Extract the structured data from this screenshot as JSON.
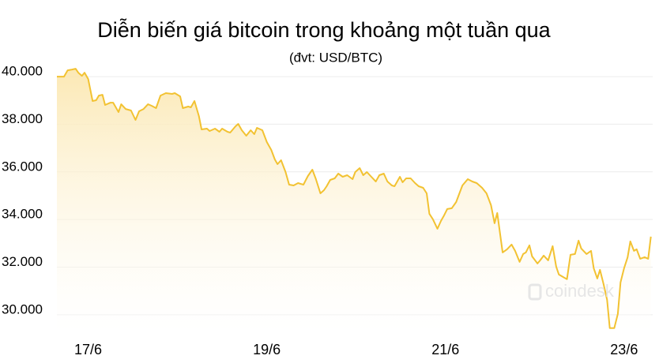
{
  "chart_data": {
    "type": "line",
    "title": "Diễn biến giá bitcoin trong khoảng một tuần qua",
    "subtitle": "(đvt: USD/BTC)",
    "watermark": "coindesk",
    "color": "#f2c232",
    "area": true,
    "grid": true,
    "xlim": [
      16.65,
      23.32
    ],
    "xticks": [
      {
        "value": 17,
        "label": "17/6"
      },
      {
        "value": 19,
        "label": "19/6"
      },
      {
        "value": 21,
        "label": "21/6"
      },
      {
        "value": 23,
        "label": "23/6"
      }
    ],
    "ylim": [
      29300,
      40400
    ],
    "yticks": [
      {
        "value": 30000,
        "label": "30.000"
      },
      {
        "value": 32000,
        "label": "32.000"
      },
      {
        "value": 34000,
        "label": "34.000"
      },
      {
        "value": 36000,
        "label": "36.000"
      },
      {
        "value": 38000,
        "label": "38.000"
      },
      {
        "value": 40000,
        "label": "40.000"
      }
    ],
    "x": [
      16.65,
      16.73,
      16.77,
      16.82,
      16.86,
      16.89,
      16.93,
      16.96,
      17.0,
      17.05,
      17.09,
      17.12,
      17.16,
      17.19,
      17.25,
      17.28,
      17.34,
      17.37,
      17.42,
      17.48,
      17.53,
      17.57,
      17.62,
      17.67,
      17.71,
      17.76,
      17.81,
      17.87,
      17.94,
      17.97,
      18.03,
      18.06,
      18.12,
      18.15,
      18.19,
      18.24,
      18.27,
      18.33,
      18.36,
      18.42,
      18.47,
      18.5,
      18.56,
      18.59,
      18.65,
      18.68,
      18.72,
      18.77,
      18.82,
      18.86,
      18.89,
      18.95,
      19.0,
      19.05,
      19.09,
      19.12,
      19.16,
      19.21,
      19.25,
      19.3,
      19.35,
      19.41,
      19.46,
      19.51,
      19.55,
      19.6,
      19.64,
      19.67,
      19.71,
      19.76,
      19.8,
      19.85,
      19.9,
      19.96,
      19.99,
      20.04,
      20.08,
      20.12,
      20.17,
      20.22,
      20.26,
      20.31,
      20.35,
      20.4,
      20.43,
      20.49,
      20.52,
      20.56,
      20.61,
      20.66,
      20.7,
      20.75,
      20.79,
      20.82,
      20.86,
      20.91,
      20.95,
      20.98,
      21.02,
      21.07,
      21.12,
      21.16,
      21.19,
      21.25,
      21.3,
      21.35,
      21.41,
      21.46,
      21.51,
      21.55,
      21.58,
      21.64,
      21.69,
      21.74,
      21.78,
      21.83,
      21.87,
      21.9,
      21.94,
      21.97,
      22.03,
      22.06,
      22.1,
      22.15,
      22.2,
      22.24,
      22.27,
      22.33,
      22.36,
      22.4,
      22.45,
      22.49,
      22.52,
      22.58,
      22.63,
      22.66,
      22.7,
      22.73,
      22.77,
      22.81,
      22.84,
      22.89,
      22.93,
      22.96,
      23.0,
      23.04,
      23.07,
      23.11,
      23.14,
      23.18,
      23.23,
      23.27,
      23.3
    ],
    "values": [
      40000,
      40000,
      40265,
      40298,
      40331,
      40166,
      40033,
      40166,
      39901,
      38974,
      39007,
      39205,
      39238,
      38808,
      38907,
      38907,
      38510,
      38841,
      38642,
      38576,
      38179,
      38543,
      38642,
      38841,
      38775,
      38676,
      39205,
      39305,
      39272,
      39305,
      39172,
      38676,
      38742,
      38709,
      38974,
      38345,
      37782,
      37815,
      37716,
      37815,
      37682,
      37815,
      37682,
      37649,
      37914,
      38013,
      37748,
      37517,
      37748,
      37583,
      37848,
      37748,
      37252,
      36921,
      36524,
      36325,
      36490,
      35994,
      35464,
      35431,
      35530,
      35464,
      35828,
      36093,
      35696,
      35100,
      35232,
      35398,
      35663,
      35729,
      35927,
      35795,
      35861,
      35696,
      35994,
      36159,
      35861,
      35994,
      35795,
      35597,
      35861,
      35927,
      35597,
      35431,
      35398,
      35795,
      35563,
      35729,
      35729,
      35530,
      35398,
      35331,
      35100,
      34239,
      34007,
      33610,
      33941,
      34140,
      34438,
      34471,
      34735,
      35133,
      35431,
      35696,
      35597,
      35530,
      35331,
      35100,
      34603,
      33842,
      34272,
      32617,
      32749,
      32948,
      32683,
      32219,
      32550,
      32617,
      32914,
      32451,
      32153,
      32285,
      32484,
      32285,
      32881,
      32021,
      31690,
      31558,
      31492,
      32518,
      32550,
      33113,
      32782,
      32550,
      32683,
      31954,
      31524,
      31888,
      31292,
      30630,
      29438,
      29438,
      30034,
      31358,
      31954,
      32418,
      33080,
      32683,
      32749,
      32352,
      32418,
      32352,
      33279
    ]
  }
}
